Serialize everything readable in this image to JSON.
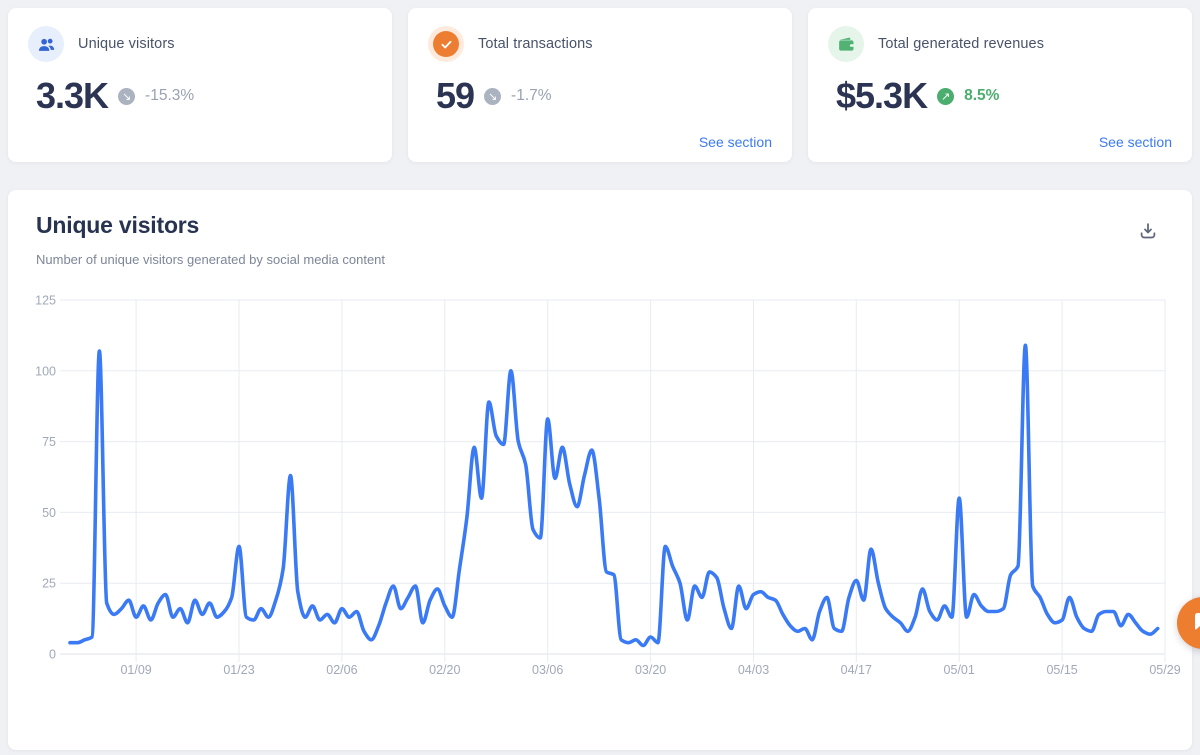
{
  "cards": [
    {
      "icon": "users-icon",
      "title": "Unique visitors",
      "value": "3.3K",
      "change": "-15.3%",
      "trend": "down",
      "arrow": "↘",
      "link": ""
    },
    {
      "icon": "check-icon",
      "title": "Total transactions",
      "value": "59",
      "change": "-1.7%",
      "trend": "down",
      "arrow": "↘",
      "link": "See section"
    },
    {
      "icon": "wallet-icon",
      "title": "Total generated revenues",
      "value": "$5.3K",
      "change": "8.5%",
      "trend": "up",
      "arrow": "↗",
      "link": "See section"
    }
  ],
  "panel": {
    "title": "Unique visitors",
    "subtitle": "Number of unique visitors generated by social media content",
    "download_icon": "download-icon"
  },
  "chat": {
    "icon": "chat-bubble-icon"
  },
  "colors": {
    "accent_blue": "#3b7af5",
    "navy": "#2b3453",
    "orange": "#ed7d31",
    "green": "#4cae6e",
    "badge_gray": "#abb3c0",
    "grid": "#e8ebf1",
    "baseline": "#dde2ea",
    "axis_text": "#a0a9b8",
    "muted_text": "#7c8698",
    "line": "#3b7af5",
    "page_bg": "#f0f1f5"
  },
  "chart_data": {
    "type": "line",
    "title": "Unique visitors",
    "subtitle": "Number of unique visitors generated by social media content",
    "xlabel": "",
    "ylabel": "",
    "ylim": [
      0,
      125
    ],
    "y_ticks": [
      0,
      25,
      50,
      75,
      100,
      125
    ],
    "x_tick_labels": [
      "01/09",
      "01/23",
      "02/06",
      "02/20",
      "03/06",
      "03/20",
      "04/03",
      "04/17",
      "05/01",
      "05/15",
      "05/29"
    ],
    "x_tick_indices": [
      9,
      23,
      37,
      51,
      65,
      79,
      93,
      107,
      121,
      135,
      149
    ],
    "grid": true,
    "legend": false,
    "series": [
      {
        "name": "Unique visitors",
        "values": [
          4,
          4,
          5,
          6,
          107,
          18,
          14,
          16,
          19,
          13,
          17,
          12,
          18,
          21,
          13,
          16,
          11,
          19,
          14,
          18,
          13,
          15,
          20,
          38,
          13,
          12,
          16,
          13,
          19,
          30,
          63,
          22,
          13,
          17,
          12,
          14,
          11,
          16,
          13,
          15,
          8,
          5,
          10,
          18,
          24,
          16,
          20,
          24,
          11,
          19,
          23,
          17,
          13,
          30,
          48,
          73,
          55,
          89,
          77,
          74,
          100,
          75,
          67,
          44,
          41,
          83,
          62,
          73,
          60,
          52,
          63,
          72,
          55,
          29,
          28,
          5,
          4,
          5,
          3,
          6,
          4,
          38,
          31,
          25,
          12,
          24,
          20,
          29,
          27,
          16,
          9,
          24,
          16,
          21,
          22,
          20,
          19,
          14,
          10,
          8,
          9,
          5,
          15,
          20,
          9,
          8,
          20,
          26,
          19,
          37,
          25,
          16,
          13,
          11,
          8,
          13,
          23,
          15,
          12,
          17,
          13,
          55,
          13,
          21,
          17,
          15,
          15,
          16,
          28,
          31,
          109,
          24,
          20,
          14,
          11,
          12,
          20,
          13,
          9,
          8,
          14,
          15,
          15,
          10,
          14,
          11,
          8,
          7,
          9
        ]
      }
    ]
  }
}
